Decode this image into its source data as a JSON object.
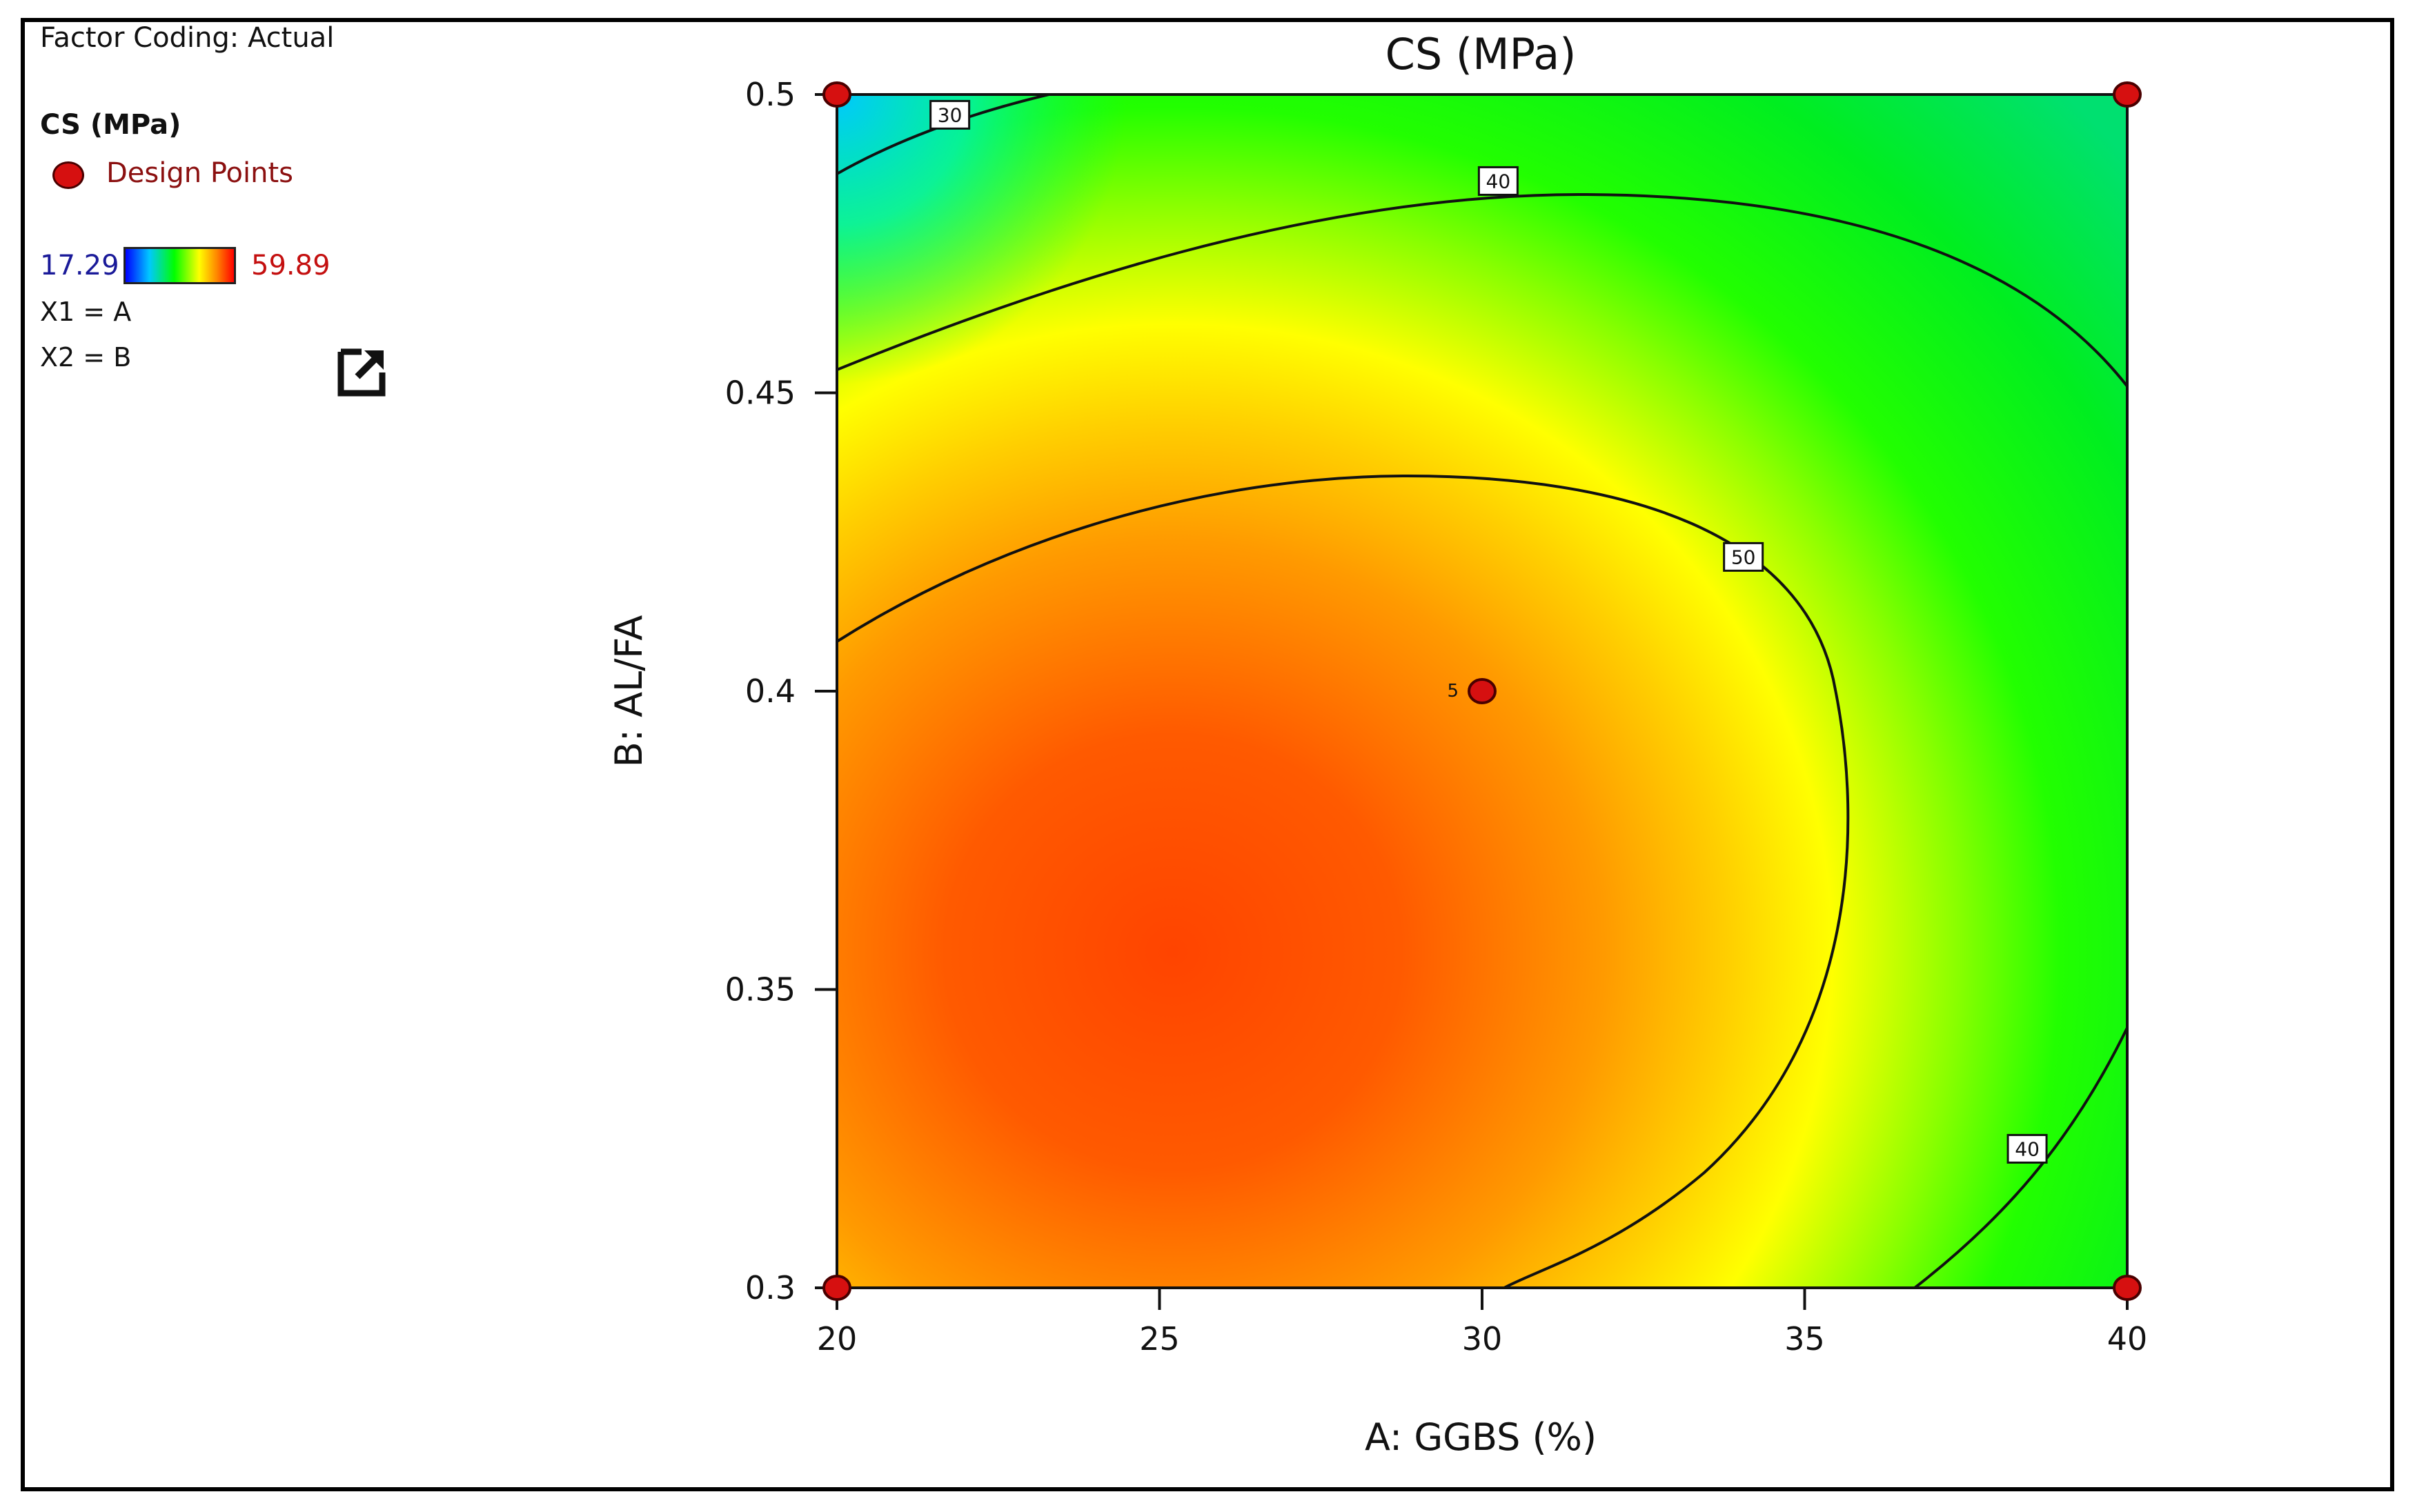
{
  "sidebar": {
    "factor_coding": "Factor Coding: Actual",
    "legend_title": "CS (MPa)",
    "design_points_label": "Design Points",
    "color_min": "17.29",
    "color_max": "59.89",
    "x1_map": "X1 = A",
    "x2_map": "X2 = B",
    "export_icon": "export-icon"
  },
  "colors": {
    "design_point": "#d61010",
    "low": "#0000ff",
    "high": "#ff0000"
  },
  "chart_data": {
    "type": "contour",
    "title": "CS (MPa)",
    "xlabel": "A: GGBS (%)",
    "ylabel": "B: AL/FA",
    "xlim": [
      20,
      40
    ],
    "ylim": [
      0.3,
      0.5
    ],
    "x_ticks": [
      "20",
      "25",
      "30",
      "35",
      "40"
    ],
    "y_ticks": [
      "0.3",
      "0.35",
      "0.4",
      "0.45",
      "0.5"
    ],
    "color_range": [
      17.29,
      59.89
    ],
    "contour_levels": [
      30,
      40,
      50
    ],
    "contour_labels": [
      {
        "text": "30",
        "x": 21.75,
        "y": 0.4966
      },
      {
        "text": "40",
        "x": 30.25,
        "y": 0.4855
      },
      {
        "text": "50",
        "x": 34.05,
        "y": 0.4225
      },
      {
        "text": "40",
        "x": 38.45,
        "y": 0.3233
      }
    ],
    "design_points": [
      {
        "x": 20,
        "y": 0.5,
        "count": null
      },
      {
        "x": 40,
        "y": 0.5,
        "count": null
      },
      {
        "x": 30,
        "y": 0.4,
        "count": "5"
      },
      {
        "x": 20,
        "y": 0.3,
        "count": null
      },
      {
        "x": 40,
        "y": 0.3,
        "count": null
      }
    ]
  }
}
